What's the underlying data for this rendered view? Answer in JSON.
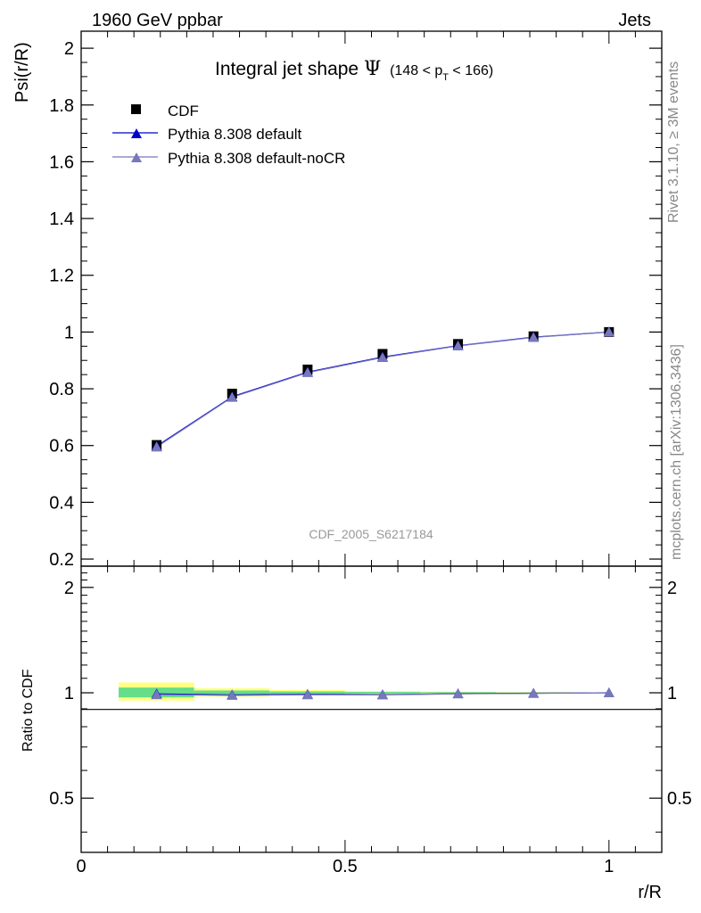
{
  "header": {
    "left": "1960 GeV ppbar",
    "right": "Jets"
  },
  "side_text": {
    "rivet": "Rivet 3.1.10, ≥ 3M events",
    "mcplots": "mcplots.cern.ch [arXiv:1306.3436]"
  },
  "watermark": "CDF_2005_S6217184",
  "chart_data": [
    {
      "type": "line",
      "title": "Integral jet shape",
      "title_symbol": "Ψ",
      "title_range": {
        "prefix": "(148 < p",
        "subscript": "T",
        "suffix": " < 166)"
      },
      "ylabel": "Psi(r/R)",
      "xlim": [
        0,
        1.1
      ],
      "ylim": [
        0.175,
        2.06
      ],
      "yticks": [
        0.2,
        0.4,
        0.6,
        0.8,
        1,
        1.2,
        1.4,
        1.6,
        1.8,
        2
      ],
      "ytick_labels": [
        "0.2",
        "0.4",
        "0.6",
        "0.8",
        "1",
        "1.2",
        "1.4",
        "1.6",
        "1.8",
        "2"
      ],
      "legend_position": "top-left",
      "x": [
        0.143,
        0.286,
        0.429,
        0.571,
        0.714,
        0.857,
        1.0
      ],
      "series": [
        {
          "name": "CDF",
          "marker": "square",
          "color": "#000000",
          "values": [
            0.602,
            0.783,
            0.868,
            0.923,
            0.958,
            0.985,
            1.0
          ]
        },
        {
          "name": "Pythia 8.308 default",
          "marker": "triangle",
          "color": "#0000cc",
          "values": [
            0.598,
            0.772,
            0.859,
            0.912,
            0.952,
            0.982,
            1.0
          ]
        },
        {
          "name": "Pythia 8.308 default-noCR",
          "marker": "triangle",
          "color": "#7777bb",
          "values": [
            0.595,
            0.77,
            0.857,
            0.91,
            0.951,
            0.981,
            1.0
          ]
        }
      ]
    },
    {
      "type": "line",
      "ylabel": "Ratio to CDF",
      "xlabel": "r/R",
      "xlim": [
        0,
        1.1
      ],
      "ylim": [
        0.35,
        2.3
      ],
      "yscale": "log",
      "yticks": [
        0.5,
        1,
        2
      ],
      "ytick_labels": [
        "0.5",
        "1",
        "2"
      ],
      "xticks": [
        0,
        0.5,
        1
      ],
      "xtick_labels": [
        "0",
        "0.5",
        "1"
      ],
      "band_colors": {
        "outer": "#ffff80",
        "inner": "#66dd88"
      },
      "bands": [
        {
          "x0": 0.071,
          "x1": 0.214,
          "outer": [
            0.95,
            1.07
          ],
          "inner": [
            0.97,
            1.035
          ]
        },
        {
          "x0": 0.214,
          "x1": 0.357,
          "outer": [
            0.975,
            1.03
          ],
          "inner": [
            0.988,
            1.015
          ]
        },
        {
          "x0": 0.357,
          "x1": 0.5,
          "outer": [
            0.985,
            1.018
          ],
          "inner": [
            0.993,
            1.009
          ]
        },
        {
          "x0": 0.5,
          "x1": 0.643,
          "outer": [
            0.99,
            1.012
          ],
          "inner": [
            0.995,
            1.006
          ]
        },
        {
          "x0": 0.643,
          "x1": 0.786,
          "outer": [
            0.993,
            1.008
          ],
          "inner": [
            0.997,
            1.004
          ]
        },
        {
          "x0": 0.786,
          "x1": 0.929,
          "outer": [
            0.996,
            1.005
          ],
          "inner": [
            0.998,
            1.002
          ]
        }
      ],
      "x": [
        0.143,
        0.286,
        0.429,
        0.571,
        0.714,
        0.857,
        1.0
      ],
      "series": [
        {
          "name": "Pythia 8.308 default",
          "color": "#0000cc",
          "values": [
            0.993,
            0.986,
            0.99,
            0.988,
            0.994,
            0.997,
            1.0
          ]
        },
        {
          "name": "Pythia 8.308 default-noCR",
          "color": "#7777bb",
          "values": [
            0.988,
            0.983,
            0.987,
            0.986,
            0.993,
            0.996,
            1.0
          ]
        }
      ]
    }
  ]
}
